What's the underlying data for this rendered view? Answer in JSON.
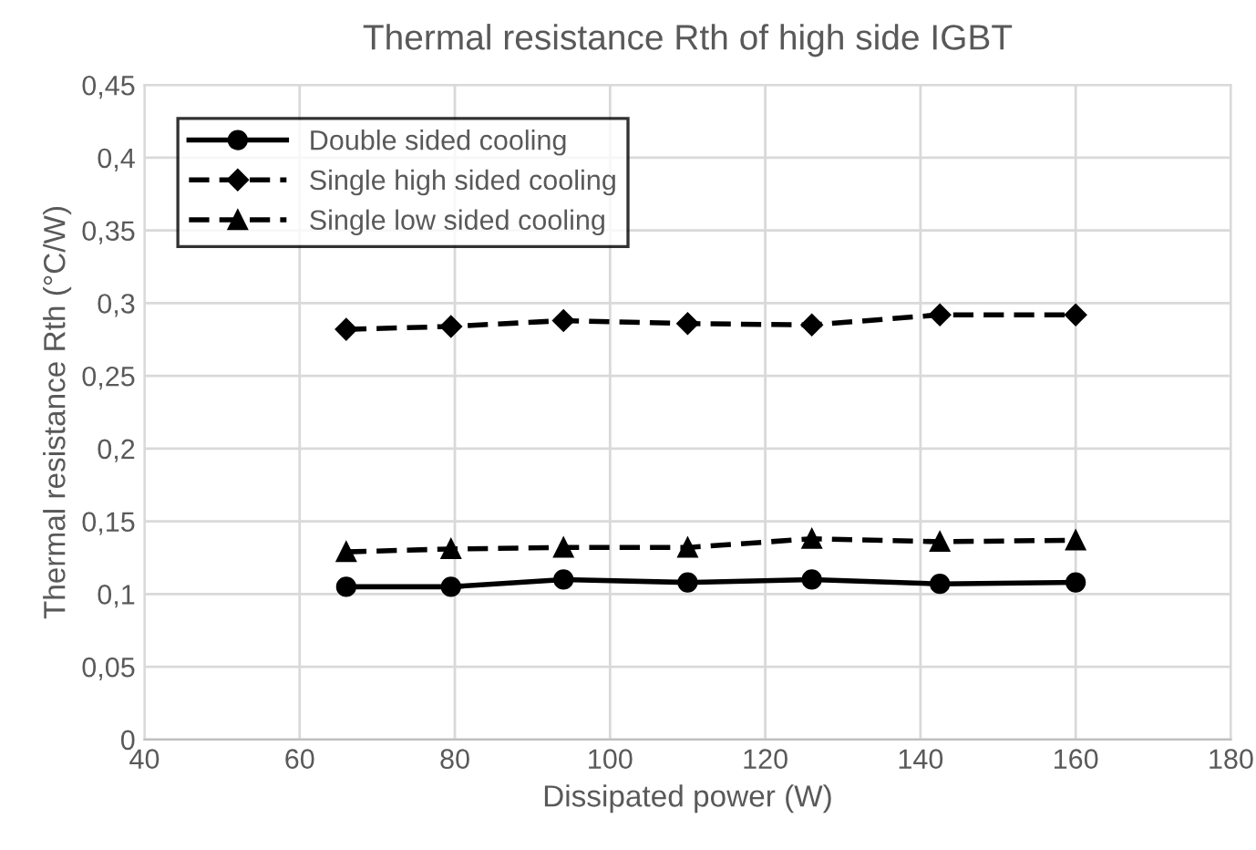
{
  "chart_data": {
    "type": "line",
    "title": "Thermal resistance Rth of high side IGBT",
    "xlabel": "Dissipated power (W)",
    "ylabel": "Thermal resistance Rth (°C/W)",
    "x": [
      66,
      79.5,
      94,
      110,
      126,
      142.5,
      160
    ],
    "series": [
      {
        "name": "Double sided cooling",
        "color": "#000000",
        "marker": "circle",
        "line_style": "solid",
        "values": [
          0.105,
          0.105,
          0.11,
          0.108,
          0.11,
          0.107,
          0.108
        ]
      },
      {
        "name": "Single high sided cooling",
        "color": "#000000",
        "marker": "diamond",
        "line_style": "dashed",
        "values": [
          0.282,
          0.284,
          0.288,
          0.286,
          0.285,
          0.292,
          0.292
        ]
      },
      {
        "name": "Single low sided cooling",
        "color": "#000000",
        "marker": "triangle",
        "line_style": "dashed",
        "values": [
          0.129,
          0.131,
          0.132,
          0.132,
          0.138,
          0.136,
          0.137
        ]
      }
    ],
    "xlim": [
      40,
      180
    ],
    "xticks": [
      40,
      60,
      80,
      100,
      120,
      140,
      160,
      180
    ],
    "ylim": [
      0,
      0.45
    ],
    "yticks": [
      0,
      {
        "value": 0.05,
        "label": "0,05"
      },
      {
        "value": 0.1,
        "label": "0,1"
      },
      {
        "value": 0.15,
        "label": "0,15"
      },
      {
        "value": 0.2,
        "label": "0,2"
      },
      {
        "value": 0.25,
        "label": "0,25"
      },
      {
        "value": 0.3,
        "label": "0,3"
      },
      {
        "value": 0.35,
        "label": "0,35"
      },
      {
        "value": 0.4,
        "label": "0,4"
      },
      {
        "value": 0.45,
        "label": "0,45"
      }
    ],
    "grid": true,
    "legend": "top left"
  }
}
